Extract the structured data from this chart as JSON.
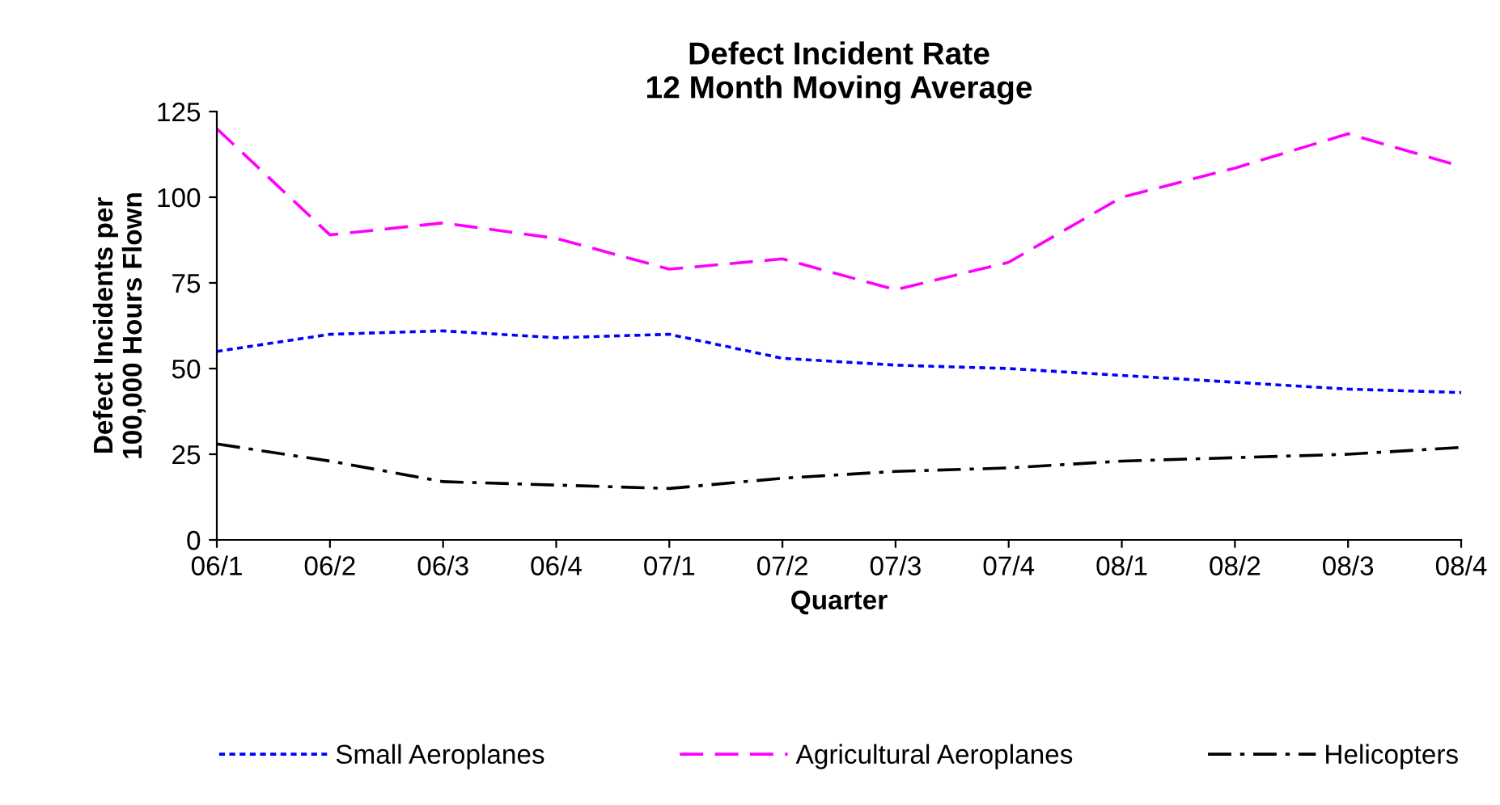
{
  "chart_data": {
    "type": "line",
    "title": "Defect Incident Rate\n12 Month Moving Average",
    "xlabel": "Quarter",
    "ylabel": "Defect Incidents per\n100,000 Hours Flown",
    "categories": [
      "06/1",
      "06/2",
      "06/3",
      "06/4",
      "07/1",
      "07/2",
      "07/3",
      "07/4",
      "08/1",
      "08/2",
      "08/3",
      "08/4"
    ],
    "series": [
      {
        "name": "Small Aeroplanes",
        "color": "#0000ff",
        "line_style": "dotted",
        "values": [
          55,
          60,
          61,
          59,
          60,
          53,
          51,
          50,
          48,
          46,
          44,
          43
        ]
      },
      {
        "name": "Agricultural Aeroplanes",
        "color": "#ff00ff",
        "line_style": "dashed",
        "values": [
          120,
          89,
          92.5,
          88,
          79,
          82,
          73,
          81,
          100,
          108.5,
          118.5,
          109
        ]
      },
      {
        "name": "Helicopters",
        "color": "#000000",
        "line_style": "dashdot",
        "values": [
          28,
          23,
          17,
          16,
          15,
          18,
          20,
          21,
          23,
          24,
          25,
          27
        ]
      }
    ],
    "ylim": [
      0,
      125
    ],
    "yticks": [
      0,
      25,
      50,
      75,
      100,
      125
    ],
    "grid": false,
    "legend": "bottom",
    "marker": "none"
  }
}
